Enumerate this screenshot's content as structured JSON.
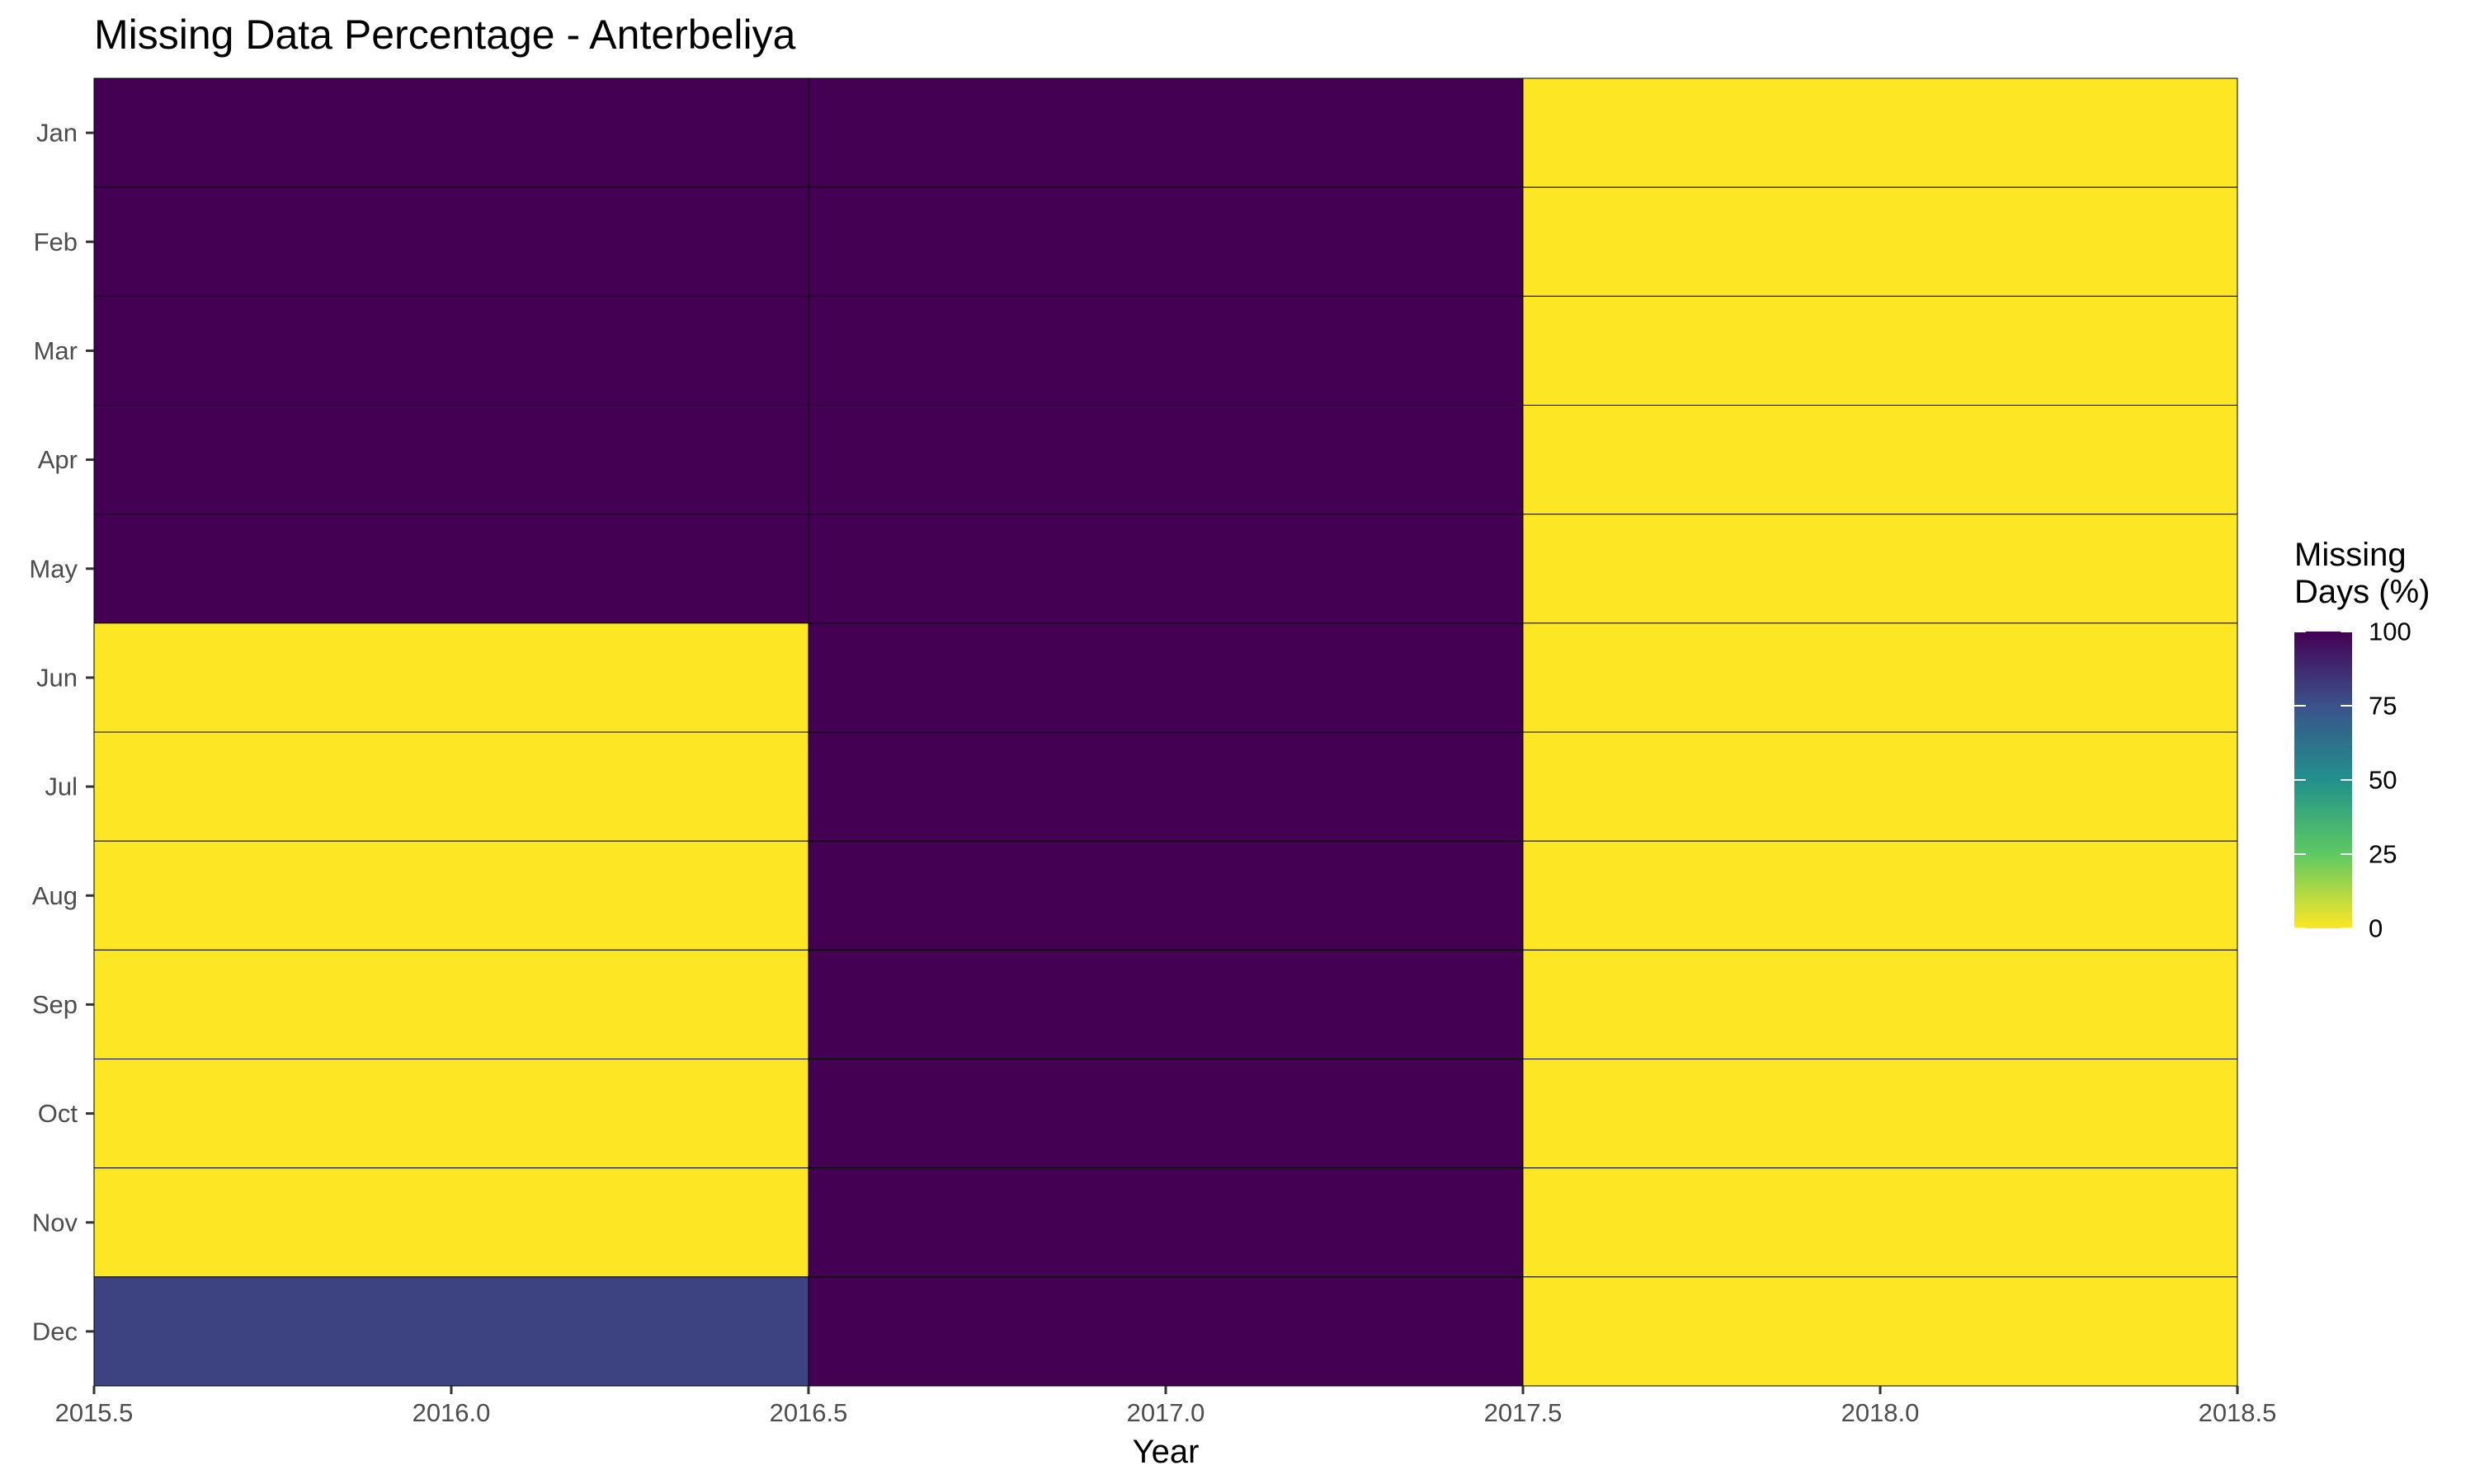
{
  "chart_data": {
    "type": "heatmap",
    "title": "Missing Data Percentage - Anterbeliya",
    "xlabel": "Year",
    "ylabel": "",
    "x_categories": [
      2016,
      2017,
      2018
    ],
    "xlim": [
      2015.5,
      2018.5
    ],
    "x_ticks": [
      "2015.5",
      "2016.0",
      "2016.5",
      "2017.0",
      "2017.5",
      "2018.0",
      "2018.5"
    ],
    "y_categories": [
      "Jan",
      "Feb",
      "Mar",
      "Apr",
      "May",
      "Jun",
      "Jul",
      "Aug",
      "Sep",
      "Oct",
      "Nov",
      "Dec"
    ],
    "values": [
      [
        100,
        100,
        0
      ],
      [
        100,
        100,
        0
      ],
      [
        100,
        100,
        0
      ],
      [
        100,
        100,
        0
      ],
      [
        100,
        100,
        0
      ],
      [
        0,
        100,
        0
      ],
      [
        0,
        100,
        0
      ],
      [
        0,
        100,
        0
      ],
      [
        0,
        100,
        0
      ],
      [
        0,
        100,
        0
      ],
      [
        0,
        100,
        0
      ],
      [
        80,
        100,
        0
      ]
    ],
    "legend": {
      "title_lines": [
        "Missing",
        "Days (%)"
      ],
      "ticks": [
        "0",
        "25",
        "50",
        "75",
        "100"
      ],
      "range": [
        0,
        100
      ],
      "position": "right"
    },
    "colormap": [
      "#fde725",
      "#5ec962",
      "#21918c",
      "#3b528b",
      "#440154"
    ],
    "grid": false,
    "tile_border_color": "#000000"
  }
}
